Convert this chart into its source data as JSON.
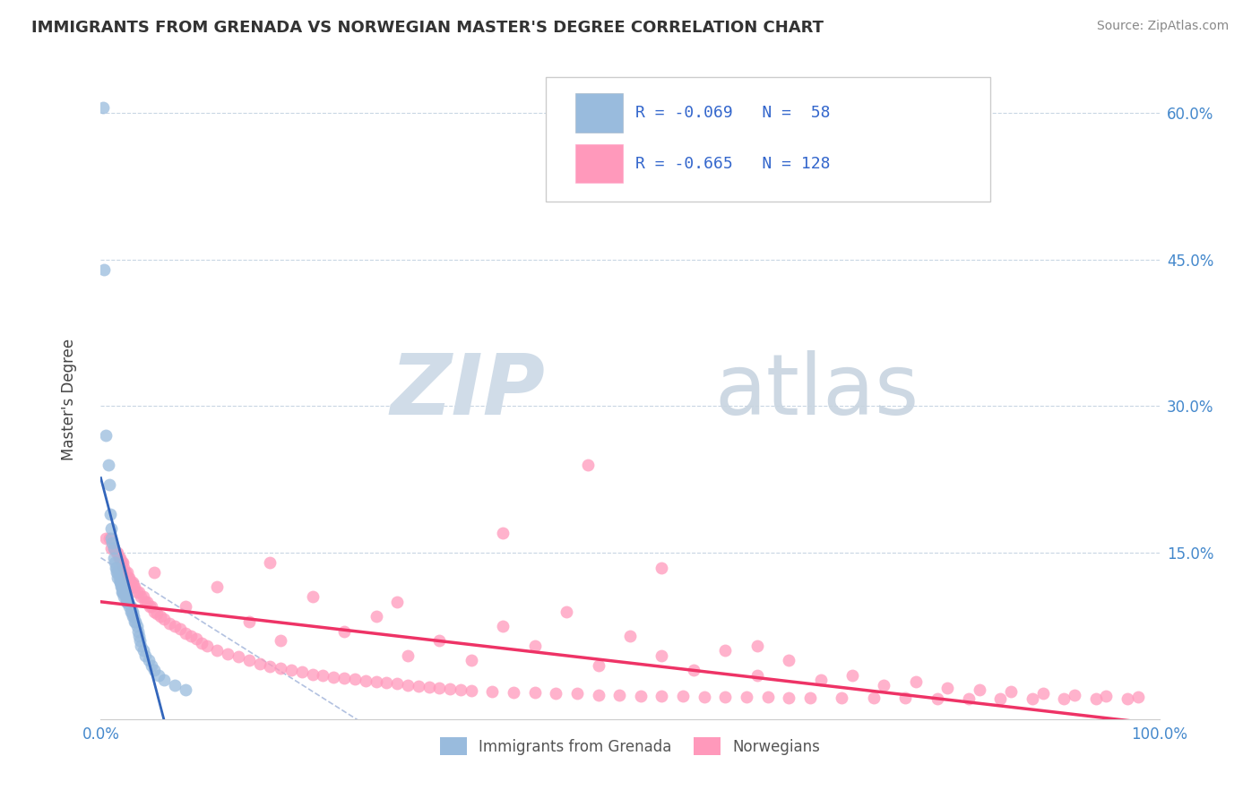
{
  "title": "IMMIGRANTS FROM GRENADA VS NORWEGIAN MASTER'S DEGREE CORRELATION CHART",
  "source": "Source: ZipAtlas.com",
  "ylabel": "Master's Degree",
  "xlim": [
    0.0,
    1.0
  ],
  "ylim": [
    -0.02,
    0.65
  ],
  "blue_color": "#99BBDD",
  "pink_color": "#FF99BB",
  "blue_line_color": "#3366BB",
  "pink_line_color": "#EE3366",
  "dashed_line_color": "#AABBDD",
  "watermark_zip": "ZIP",
  "watermark_atlas": "atlas",
  "blue_scatter_x": [
    0.002,
    0.003,
    0.005,
    0.007,
    0.008,
    0.009,
    0.01,
    0.01,
    0.011,
    0.012,
    0.012,
    0.013,
    0.014,
    0.015,
    0.015,
    0.016,
    0.016,
    0.017,
    0.018,
    0.018,
    0.019,
    0.019,
    0.02,
    0.02,
    0.02,
    0.021,
    0.021,
    0.022,
    0.022,
    0.023,
    0.024,
    0.024,
    0.025,
    0.025,
    0.026,
    0.027,
    0.028,
    0.028,
    0.029,
    0.03,
    0.03,
    0.031,
    0.032,
    0.033,
    0.034,
    0.035,
    0.036,
    0.037,
    0.038,
    0.04,
    0.042,
    0.045,
    0.048,
    0.05,
    0.055,
    0.06,
    0.07,
    0.08
  ],
  "blue_scatter_y": [
    0.605,
    0.44,
    0.27,
    0.24,
    0.22,
    0.19,
    0.175,
    0.165,
    0.16,
    0.155,
    0.145,
    0.14,
    0.135,
    0.135,
    0.13,
    0.13,
    0.125,
    0.125,
    0.12,
    0.12,
    0.12,
    0.115,
    0.115,
    0.115,
    0.11,
    0.11,
    0.11,
    0.11,
    0.105,
    0.105,
    0.105,
    0.1,
    0.1,
    0.1,
    0.1,
    0.095,
    0.095,
    0.09,
    0.09,
    0.09,
    0.085,
    0.085,
    0.08,
    0.08,
    0.075,
    0.07,
    0.065,
    0.06,
    0.055,
    0.05,
    0.045,
    0.04,
    0.035,
    0.03,
    0.025,
    0.02,
    0.015,
    0.01
  ],
  "pink_scatter_x": [
    0.005,
    0.008,
    0.01,
    0.012,
    0.015,
    0.016,
    0.017,
    0.018,
    0.019,
    0.02,
    0.021,
    0.022,
    0.023,
    0.025,
    0.026,
    0.027,
    0.028,
    0.03,
    0.031,
    0.032,
    0.034,
    0.036,
    0.038,
    0.04,
    0.042,
    0.044,
    0.046,
    0.048,
    0.05,
    0.053,
    0.056,
    0.06,
    0.065,
    0.07,
    0.075,
    0.08,
    0.085,
    0.09,
    0.095,
    0.1,
    0.11,
    0.12,
    0.13,
    0.14,
    0.15,
    0.16,
    0.17,
    0.18,
    0.19,
    0.2,
    0.21,
    0.22,
    0.23,
    0.24,
    0.25,
    0.26,
    0.27,
    0.28,
    0.29,
    0.3,
    0.31,
    0.32,
    0.33,
    0.34,
    0.35,
    0.37,
    0.39,
    0.41,
    0.43,
    0.45,
    0.47,
    0.49,
    0.51,
    0.53,
    0.55,
    0.57,
    0.59,
    0.61,
    0.63,
    0.65,
    0.67,
    0.7,
    0.73,
    0.76,
    0.79,
    0.82,
    0.85,
    0.88,
    0.91,
    0.94,
    0.97,
    0.05,
    0.08,
    0.11,
    0.14,
    0.17,
    0.2,
    0.23,
    0.26,
    0.29,
    0.32,
    0.35,
    0.38,
    0.41,
    0.44,
    0.47,
    0.5,
    0.53,
    0.56,
    0.59,
    0.62,
    0.65,
    0.68,
    0.71,
    0.74,
    0.77,
    0.8,
    0.83,
    0.86,
    0.89,
    0.92,
    0.95,
    0.98,
    0.46,
    0.53,
    0.38,
    0.62,
    0.16,
    0.28
  ],
  "pink_scatter_y": [
    0.165,
    0.165,
    0.155,
    0.155,
    0.15,
    0.15,
    0.145,
    0.145,
    0.14,
    0.14,
    0.14,
    0.135,
    0.13,
    0.13,
    0.125,
    0.125,
    0.12,
    0.12,
    0.115,
    0.115,
    0.11,
    0.11,
    0.105,
    0.105,
    0.1,
    0.1,
    0.095,
    0.095,
    0.09,
    0.088,
    0.085,
    0.082,
    0.078,
    0.075,
    0.072,
    0.068,
    0.065,
    0.062,
    0.058,
    0.055,
    0.05,
    0.047,
    0.044,
    0.04,
    0.037,
    0.034,
    0.032,
    0.03,
    0.028,
    0.026,
    0.025,
    0.023,
    0.022,
    0.021,
    0.019,
    0.018,
    0.017,
    0.016,
    0.015,
    0.014,
    0.013,
    0.012,
    0.011,
    0.01,
    0.009,
    0.008,
    0.007,
    0.007,
    0.006,
    0.006,
    0.005,
    0.005,
    0.004,
    0.004,
    0.004,
    0.003,
    0.003,
    0.003,
    0.003,
    0.002,
    0.002,
    0.002,
    0.002,
    0.002,
    0.001,
    0.001,
    0.001,
    0.001,
    0.001,
    0.001,
    0.001,
    0.13,
    0.095,
    0.115,
    0.08,
    0.06,
    0.105,
    0.07,
    0.085,
    0.045,
    0.06,
    0.04,
    0.075,
    0.055,
    0.09,
    0.035,
    0.065,
    0.045,
    0.03,
    0.05,
    0.025,
    0.04,
    0.02,
    0.025,
    0.015,
    0.018,
    0.012,
    0.01,
    0.008,
    0.006,
    0.005,
    0.004,
    0.003,
    0.24,
    0.135,
    0.17,
    0.055,
    0.14,
    0.1
  ]
}
